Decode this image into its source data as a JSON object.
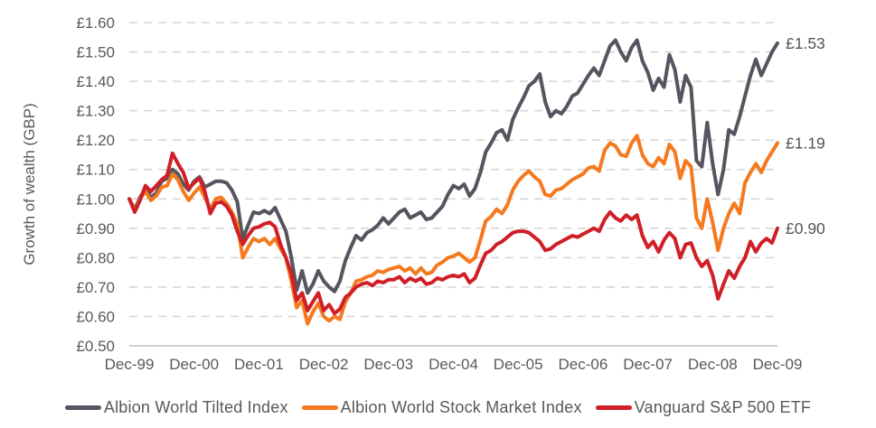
{
  "chart_data": {
    "type": "line",
    "title": "",
    "ylabel": "Growth of wealth (GBP)",
    "xlabel": "",
    "currency": "£",
    "ylim": [
      0.5,
      1.6
    ],
    "y_ticks": [
      0.5,
      0.6,
      0.7,
      0.8,
      0.9,
      1.0,
      1.1,
      1.2,
      1.3,
      1.4,
      1.5,
      1.6
    ],
    "x_tick_labels": [
      "Dec-99",
      "Dec-00",
      "Dec-01",
      "Dec-02",
      "Dec-03",
      "Dec-04",
      "Dec-05",
      "Dec-06",
      "Dec-07",
      "Dec-08",
      "Dec-09"
    ],
    "x_frequency": "monthly",
    "grid": "horizontal-dashed",
    "legend_position": "bottom",
    "gridline_color": "#d6d6d6",
    "axis_line_color": "#bfbfbf",
    "axis_text_color": "#595959",
    "series": [
      {
        "name": "Albion World Tilted Index",
        "color": "#56545f",
        "end_label": "£1.53",
        "values": [
          1.0,
          0.965,
          1.005,
          1.035,
          1.005,
          1.02,
          1.06,
          1.07,
          1.1,
          1.085,
          1.05,
          1.03,
          1.06,
          1.075,
          1.04,
          1.05,
          1.06,
          1.06,
          1.055,
          1.03,
          0.99,
          0.865,
          0.91,
          0.955,
          0.95,
          0.96,
          0.95,
          0.97,
          0.93,
          0.89,
          0.8,
          0.69,
          0.755,
          0.68,
          0.71,
          0.755,
          0.72,
          0.7,
          0.685,
          0.72,
          0.79,
          0.835,
          0.875,
          0.86,
          0.885,
          0.895,
          0.91,
          0.935,
          0.915,
          0.935,
          0.955,
          0.965,
          0.935,
          0.945,
          0.955,
          0.93,
          0.935,
          0.955,
          0.975,
          1.015,
          1.045,
          1.035,
          1.05,
          1.01,
          1.035,
          1.09,
          1.16,
          1.19,
          1.225,
          1.235,
          1.2,
          1.27,
          1.31,
          1.345,
          1.385,
          1.4,
          1.425,
          1.33,
          1.28,
          1.3,
          1.29,
          1.315,
          1.35,
          1.36,
          1.39,
          1.42,
          1.445,
          1.42,
          1.47,
          1.52,
          1.54,
          1.5,
          1.47,
          1.515,
          1.54,
          1.47,
          1.43,
          1.37,
          1.41,
          1.38,
          1.49,
          1.44,
          1.33,
          1.42,
          1.38,
          1.13,
          1.11,
          1.26,
          1.12,
          1.015,
          1.1,
          1.235,
          1.22,
          1.28,
          1.35,
          1.42,
          1.475,
          1.42,
          1.46,
          1.5,
          1.53
        ]
      },
      {
        "name": "Albion World Stock Market Index",
        "color": "#f5791f",
        "end_label": "£1.19",
        "values": [
          1.0,
          0.96,
          1.0,
          1.025,
          0.995,
          1.01,
          1.04,
          1.045,
          1.085,
          1.065,
          1.025,
          0.995,
          1.02,
          1.04,
          1.005,
          0.965,
          1.0,
          1.005,
          0.985,
          0.955,
          0.915,
          0.8,
          0.835,
          0.865,
          0.855,
          0.865,
          0.845,
          0.865,
          0.83,
          0.8,
          0.72,
          0.63,
          0.655,
          0.575,
          0.615,
          0.645,
          0.6,
          0.585,
          0.6,
          0.59,
          0.65,
          0.68,
          0.72,
          0.725,
          0.735,
          0.74,
          0.755,
          0.75,
          0.76,
          0.765,
          0.77,
          0.755,
          0.765,
          0.745,
          0.765,
          0.745,
          0.75,
          0.775,
          0.785,
          0.8,
          0.805,
          0.815,
          0.8,
          0.785,
          0.8,
          0.86,
          0.925,
          0.94,
          0.965,
          0.95,
          0.98,
          1.03,
          1.06,
          1.08,
          1.095,
          1.075,
          1.06,
          1.015,
          1.01,
          1.03,
          1.035,
          1.05,
          1.065,
          1.075,
          1.085,
          1.105,
          1.11,
          1.095,
          1.165,
          1.19,
          1.18,
          1.15,
          1.145,
          1.19,
          1.215,
          1.15,
          1.12,
          1.11,
          1.14,
          1.12,
          1.185,
          1.16,
          1.07,
          1.13,
          1.11,
          0.935,
          0.9,
          1.0,
          0.92,
          0.825,
          0.9,
          0.95,
          0.985,
          0.95,
          1.055,
          1.09,
          1.12,
          1.09,
          1.13,
          1.16,
          1.19
        ]
      },
      {
        "name": "Vanguard S&P 500 ETF",
        "color": "#d01f27",
        "end_label": "£0.90",
        "values": [
          1.0,
          0.955,
          0.995,
          1.045,
          1.025,
          1.045,
          1.065,
          1.08,
          1.155,
          1.12,
          1.09,
          1.035,
          1.055,
          1.07,
          1.025,
          0.95,
          0.985,
          0.99,
          0.975,
          0.945,
          0.89,
          0.845,
          0.875,
          0.9,
          0.905,
          0.915,
          0.92,
          0.905,
          0.845,
          0.8,
          0.745,
          0.655,
          0.68,
          0.62,
          0.65,
          0.68,
          0.62,
          0.64,
          0.61,
          0.625,
          0.665,
          0.68,
          0.7,
          0.71,
          0.715,
          0.705,
          0.72,
          0.715,
          0.725,
          0.725,
          0.735,
          0.715,
          0.73,
          0.72,
          0.73,
          0.71,
          0.715,
          0.73,
          0.725,
          0.735,
          0.74,
          0.735,
          0.745,
          0.715,
          0.73,
          0.775,
          0.815,
          0.825,
          0.845,
          0.855,
          0.87,
          0.885,
          0.89,
          0.89,
          0.885,
          0.87,
          0.855,
          0.825,
          0.83,
          0.845,
          0.855,
          0.865,
          0.875,
          0.87,
          0.88,
          0.89,
          0.9,
          0.89,
          0.93,
          0.955,
          0.935,
          0.925,
          0.945,
          0.93,
          0.945,
          0.875,
          0.835,
          0.855,
          0.82,
          0.86,
          0.885,
          0.865,
          0.8,
          0.845,
          0.85,
          0.8,
          0.77,
          0.79,
          0.74,
          0.66,
          0.71,
          0.755,
          0.73,
          0.77,
          0.8,
          0.855,
          0.82,
          0.85,
          0.865,
          0.85,
          0.9
        ]
      }
    ]
  }
}
